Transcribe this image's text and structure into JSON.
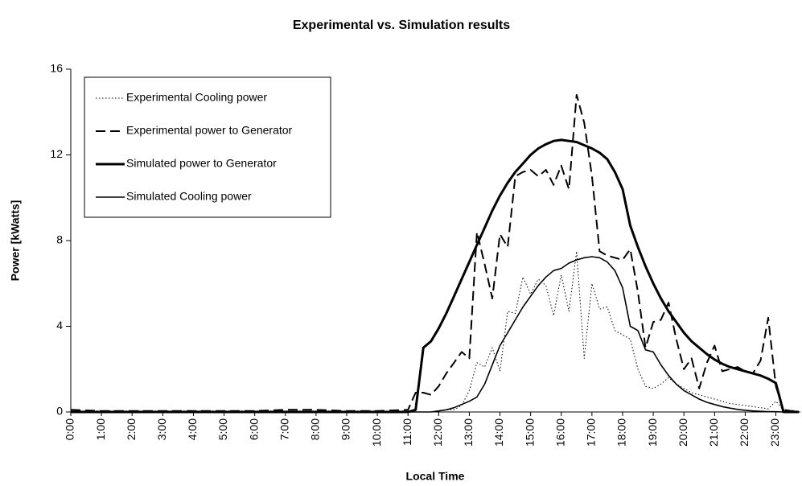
{
  "chart_data": {
    "type": "line",
    "title": "Experimental vs. Simulation results",
    "x_label": "Local Time",
    "y_label": "Power [kWatts]",
    "xlim": [
      0,
      23.8
    ],
    "ylim": [
      0,
      16
    ],
    "yticks": [
      0,
      4,
      8,
      12,
      16
    ],
    "xticks": [
      {
        "value": 0,
        "label": "0:00"
      },
      {
        "value": 1,
        "label": "1:00"
      },
      {
        "value": 2,
        "label": "2:00"
      },
      {
        "value": 3,
        "label": "3:00"
      },
      {
        "value": 4,
        "label": "4:00"
      },
      {
        "value": 5,
        "label": "5:00"
      },
      {
        "value": 6,
        "label": "6:00"
      },
      {
        "value": 7,
        "label": "7:00"
      },
      {
        "value": 8,
        "label": "8:00"
      },
      {
        "value": 9,
        "label": "9:00"
      },
      {
        "value": 10,
        "label": "10:00"
      },
      {
        "value": 11,
        "label": "11:00"
      },
      {
        "value": 12,
        "label": "12:00"
      },
      {
        "value": 13,
        "label": "13:00"
      },
      {
        "value": 14,
        "label": "14:00"
      },
      {
        "value": 15,
        "label": "15:00"
      },
      {
        "value": 16,
        "label": "16:00"
      },
      {
        "value": 17,
        "label": "17:00"
      },
      {
        "value": 18,
        "label": "18:00"
      },
      {
        "value": 19,
        "label": "19:00"
      },
      {
        "value": 20,
        "label": "20:00"
      },
      {
        "value": 21,
        "label": "21:00"
      },
      {
        "value": 22,
        "label": "22:00"
      },
      {
        "value": 23,
        "label": "23:00"
      }
    ],
    "legend": "upper left",
    "x": [
      0,
      1,
      2,
      3,
      4,
      5,
      6,
      7,
      8,
      9,
      10,
      11,
      11.25,
      11.5,
      11.75,
      12,
      12.25,
      12.5,
      12.75,
      13,
      13.25,
      13.5,
      13.75,
      14,
      14.25,
      14.5,
      14.75,
      15,
      15.25,
      15.5,
      15.75,
      16,
      16.25,
      16.5,
      16.75,
      17,
      17.25,
      17.5,
      17.75,
      18,
      18.25,
      18.5,
      18.75,
      19,
      19.25,
      19.5,
      19.75,
      20,
      20.25,
      20.5,
      20.75,
      21,
      21.25,
      21.5,
      21.75,
      22,
      22.25,
      22.5,
      22.75,
      23,
      23.25,
      23.5,
      23.75
    ],
    "series": [
      {
        "name": "Experimental Cooling power",
        "color": "#000000",
        "line_style": "dotted",
        "values": [
          0.05,
          0.05,
          0.05,
          0.05,
          0.05,
          0.05,
          0.05,
          0.05,
          0.05,
          0.05,
          0.05,
          0.05,
          0,
          0,
          0,
          0.05,
          0.1,
          0.1,
          0.3,
          1.0,
          2.3,
          2.1,
          3.0,
          1.9,
          4.7,
          4.6,
          6.3,
          5.5,
          6.2,
          5.9,
          4.5,
          6.4,
          4.7,
          7.5,
          2.5,
          6.0,
          4.8,
          4.9,
          3.8,
          3.6,
          3.4,
          2.0,
          1.2,
          1.1,
          1.3,
          1.6,
          1.3,
          1.1,
          0.9,
          0.8,
          0.7,
          0.6,
          0.5,
          0.4,
          0.35,
          0.3,
          0.25,
          0.2,
          0.15,
          0.5,
          0.1,
          0.05,
          0.05
        ]
      },
      {
        "name": "Experimental power to Generator",
        "color": "#000000",
        "line_style": "dashed",
        "values": [
          0.1,
          0.05,
          0.05,
          0.05,
          0.05,
          0.05,
          0.05,
          0.1,
          0.1,
          0.05,
          0.05,
          0.1,
          0.9,
          0.9,
          0.8,
          1.2,
          1.8,
          2.3,
          2.8,
          2.5,
          8.4,
          6.9,
          5.3,
          8.3,
          7.7,
          11.0,
          11.2,
          11.3,
          11.0,
          11.3,
          10.6,
          11.5,
          10.4,
          14.8,
          13.5,
          11.0,
          7.5,
          7.3,
          7.2,
          7.1,
          7.6,
          5.6,
          3.0,
          4.2,
          4.3,
          5.1,
          3.4,
          2.0,
          2.5,
          1.1,
          2.3,
          3.1,
          1.9,
          2.0,
          2.1,
          1.9,
          1.8,
          2.4,
          4.4,
          1.2,
          0.1,
          0.05,
          0.05
        ]
      },
      {
        "name": "Simulated power to Generator",
        "color": "#000000",
        "line_style": "thick",
        "values": [
          0,
          0,
          0,
          0,
          0,
          0,
          0,
          0,
          0,
          0,
          0,
          0,
          0.1,
          3.0,
          3.3,
          3.9,
          4.6,
          5.4,
          6.2,
          7.0,
          7.8,
          8.6,
          9.4,
          10.1,
          10.7,
          11.2,
          11.6,
          12.0,
          12.3,
          12.5,
          12.65,
          12.7,
          12.65,
          12.6,
          12.45,
          12.3,
          12.1,
          11.8,
          11.2,
          10.4,
          8.7,
          7.7,
          6.8,
          6.0,
          5.3,
          4.7,
          4.2,
          3.7,
          3.3,
          3.0,
          2.7,
          2.45,
          2.25,
          2.1,
          2.0,
          1.9,
          1.8,
          1.7,
          1.55,
          1.35,
          0,
          0,
          0
        ]
      },
      {
        "name": "Simulated Cooling power",
        "color": "#000000",
        "line_style": "solid",
        "values": [
          0,
          0,
          0,
          0,
          0,
          0,
          0,
          0,
          0,
          0,
          0,
          0,
          0,
          0,
          0,
          0.05,
          0.1,
          0.2,
          0.35,
          0.5,
          0.7,
          1.3,
          2.2,
          3.1,
          3.7,
          4.3,
          4.9,
          5.4,
          5.9,
          6.3,
          6.6,
          6.7,
          6.95,
          7.1,
          7.2,
          7.25,
          7.2,
          7.0,
          6.6,
          5.8,
          4.0,
          3.8,
          2.9,
          2.8,
          2.2,
          1.7,
          1.3,
          1.0,
          0.8,
          0.6,
          0.45,
          0.35,
          0.25,
          0.18,
          0.12,
          0.08,
          0.05,
          0.03,
          0.02,
          0.01,
          0,
          0,
          0
        ]
      }
    ]
  }
}
